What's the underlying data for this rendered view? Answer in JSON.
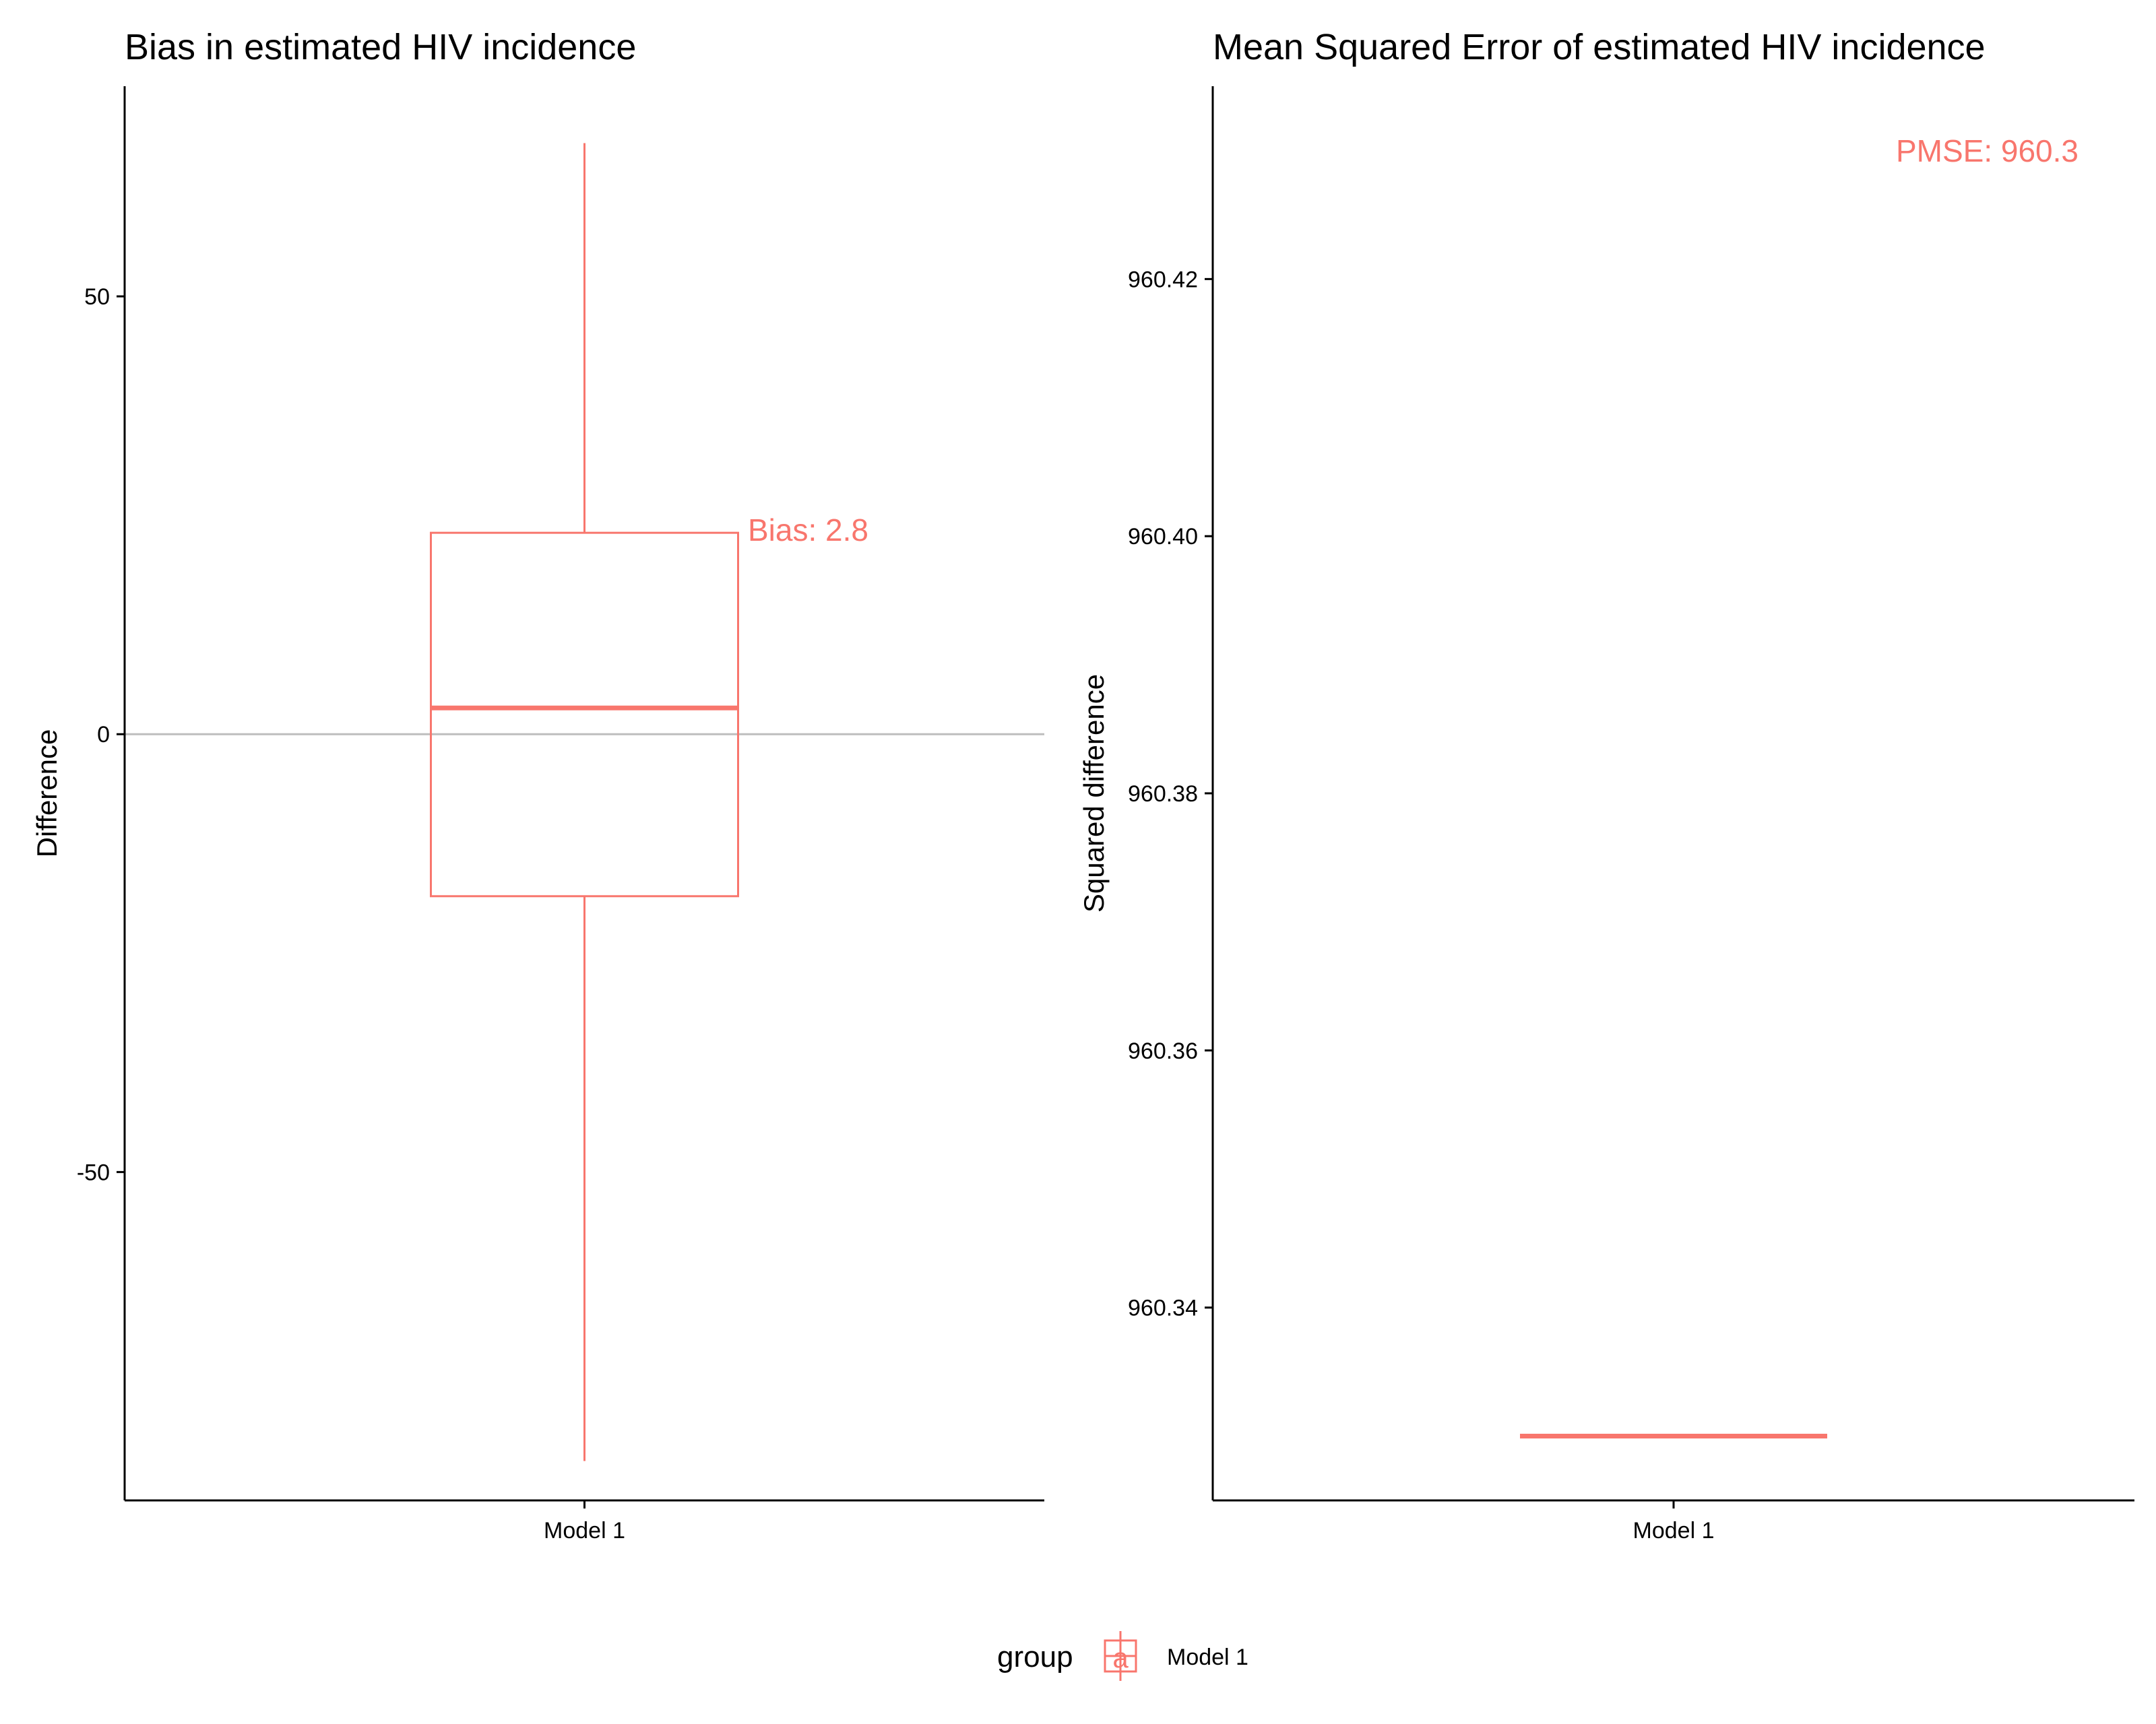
{
  "colors": {
    "series": "#F8766D",
    "zero_line": "#BEBEBE",
    "axis": "#000000"
  },
  "chart_data": [
    {
      "type": "box",
      "title": "Bias in estimated HIV incidence",
      "xlabel": "",
      "ylabel": "Difference",
      "categories": [
        "Model 1"
      ],
      "ylim": [
        -87.5,
        74
      ],
      "yticks": [
        50,
        0,
        -50
      ],
      "ytick_labels": [
        "50",
        "0",
        "-50"
      ],
      "reference_line": 0,
      "series": [
        {
          "name": "Model 1",
          "whisker_low": -83,
          "q1": -18.5,
          "median": 3,
          "q3": 23,
          "whisker_high": 67.5
        }
      ],
      "annotation": {
        "text": "Bias: 2.8"
      },
      "grid": false
    },
    {
      "type": "box",
      "title": "Mean Squared Error of estimated HIV incidence",
      "xlabel": "",
      "ylabel": "Squared difference",
      "categories": [
        "Model 1"
      ],
      "ylim": [
        960.325,
        960.435
      ],
      "yticks": [
        960.42,
        960.4,
        960.38,
        960.36,
        960.34
      ],
      "ytick_labels": [
        "960.42",
        "960.40",
        "960.38",
        "960.36",
        "960.34"
      ],
      "series": [
        {
          "name": "Model 1",
          "whisker_low": 960.33,
          "q1": 960.33,
          "median": 960.33,
          "q3": 960.33,
          "whisker_high": 960.33
        }
      ],
      "annotation": {
        "text": "PMSE: 960.3"
      },
      "grid": false
    }
  ],
  "legend": {
    "title": "group",
    "items": [
      "Model 1"
    ],
    "key_glyph": "a",
    "placement": "bottom"
  }
}
